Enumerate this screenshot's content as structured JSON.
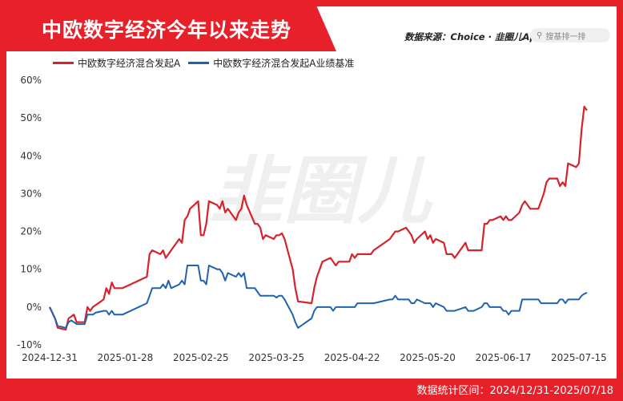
{
  "header": {
    "title": "中欧数字经济今年以来走势",
    "source": "数据来源：Choice · 韭圈儿App",
    "search_placeholder": "搜基排一排"
  },
  "watermark": "韭圈儿",
  "footer": {
    "stat_period": "数据统计区间：2024/12/31-2025/07/18"
  },
  "chart_data": {
    "type": "line",
    "yticks": [
      "60%",
      "50%",
      "40%",
      "30%",
      "20%",
      "10%",
      "0%",
      "-10%"
    ],
    "ylim": [
      -10,
      60
    ],
    "xticks": [
      "2024-12-31",
      "2025-01-28",
      "2025-02-25",
      "2025-03-25",
      "2025-04-22",
      "2025-05-20",
      "2025-06-17",
      "2025-07-15"
    ],
    "xlim": [
      "2024-12-31",
      "2025-07-18"
    ],
    "grid": false,
    "legend_position": "top-left",
    "series": [
      {
        "name": "中欧数字经济混合发起A",
        "color": "#d7222b",
        "points": [
          [
            "2024-12-31",
            0
          ],
          [
            "2025-01-02",
            -3
          ],
          [
            "2025-01-03",
            -5.5
          ],
          [
            "2025-01-06",
            -6
          ],
          [
            "2025-01-07",
            -3
          ],
          [
            "2025-01-08",
            -2.5
          ],
          [
            "2025-01-09",
            -2
          ],
          [
            "2025-01-10",
            -4
          ],
          [
            "2025-01-13",
            -4
          ],
          [
            "2025-01-14",
            0
          ],
          [
            "2025-01-15",
            -1
          ],
          [
            "2025-01-16",
            0
          ],
          [
            "2025-01-17",
            0.5
          ],
          [
            "2025-01-20",
            2
          ],
          [
            "2025-01-21",
            5
          ],
          [
            "2025-01-22",
            3.5
          ],
          [
            "2025-01-23",
            6.5
          ],
          [
            "2025-01-24",
            5
          ],
          [
            "2025-01-27",
            5
          ],
          [
            "2025-02-05",
            8
          ],
          [
            "2025-02-06",
            14
          ],
          [
            "2025-02-07",
            15
          ],
          [
            "2025-02-10",
            14
          ],
          [
            "2025-02-11",
            15
          ],
          [
            "2025-02-12",
            13
          ],
          [
            "2025-02-13",
            14
          ],
          [
            "2025-02-14",
            15
          ],
          [
            "2025-02-17",
            18
          ],
          [
            "2025-02-18",
            17
          ],
          [
            "2025-02-19",
            23
          ],
          [
            "2025-02-20",
            24
          ],
          [
            "2025-02-21",
            26
          ],
          [
            "2025-02-24",
            28
          ],
          [
            "2025-02-25",
            19
          ],
          [
            "2025-02-26",
            19
          ],
          [
            "2025-02-27",
            22
          ],
          [
            "2025-02-28",
            28
          ],
          [
            "2025-03-03",
            27
          ],
          [
            "2025-03-04",
            26
          ],
          [
            "2025-03-05",
            28
          ],
          [
            "2025-03-06",
            25
          ],
          [
            "2025-03-07",
            26
          ],
          [
            "2025-03-10",
            23
          ],
          [
            "2025-03-11",
            25
          ],
          [
            "2025-03-12",
            26
          ],
          [
            "2025-03-13",
            29.5
          ],
          [
            "2025-03-14",
            27
          ],
          [
            "2025-03-17",
            22
          ],
          [
            "2025-03-18",
            22
          ],
          [
            "2025-03-19",
            21
          ],
          [
            "2025-03-20",
            18
          ],
          [
            "2025-03-21",
            19
          ],
          [
            "2025-03-24",
            18
          ],
          [
            "2025-03-25",
            19
          ],
          [
            "2025-03-26",
            19
          ],
          [
            "2025-03-27",
            19.5
          ],
          [
            "2025-03-28",
            18
          ],
          [
            "2025-03-31",
            10
          ],
          [
            "2025-04-01",
            5
          ],
          [
            "2025-04-02",
            1.5
          ],
          [
            "2025-04-07",
            1
          ],
          [
            "2025-04-08",
            5
          ],
          [
            "2025-04-09",
            8
          ],
          [
            "2025-04-10",
            10
          ],
          [
            "2025-04-11",
            12
          ],
          [
            "2025-04-14",
            13
          ],
          [
            "2025-04-15",
            12
          ],
          [
            "2025-04-16",
            11
          ],
          [
            "2025-04-17",
            12
          ],
          [
            "2025-04-18",
            12
          ],
          [
            "2025-04-21",
            12
          ],
          [
            "2025-04-22",
            14
          ],
          [
            "2025-04-23",
            13
          ],
          [
            "2025-04-24",
            14
          ],
          [
            "2025-04-25",
            14
          ],
          [
            "2025-04-28",
            14
          ],
          [
            "2025-04-29",
            14
          ],
          [
            "2025-04-30",
            15
          ],
          [
            "2025-05-06",
            18
          ],
          [
            "2025-05-07",
            19
          ],
          [
            "2025-05-08",
            20
          ],
          [
            "2025-05-09",
            20
          ],
          [
            "2025-05-12",
            21
          ],
          [
            "2025-05-13",
            20
          ],
          [
            "2025-05-14",
            19
          ],
          [
            "2025-05-15",
            17
          ],
          [
            "2025-05-16",
            18
          ],
          [
            "2025-05-19",
            20
          ],
          [
            "2025-05-20",
            18
          ],
          [
            "2025-05-21",
            19
          ],
          [
            "2025-05-22",
            17
          ],
          [
            "2025-05-23",
            18
          ],
          [
            "2025-05-26",
            17
          ],
          [
            "2025-05-27",
            14
          ],
          [
            "2025-05-28",
            14
          ],
          [
            "2025-05-29",
            14
          ],
          [
            "2025-05-30",
            13
          ],
          [
            "2025-06-03",
            17
          ],
          [
            "2025-06-04",
            15
          ],
          [
            "2025-06-05",
            15
          ],
          [
            "2025-06-06",
            15
          ],
          [
            "2025-06-09",
            15
          ],
          [
            "2025-06-10",
            22
          ],
          [
            "2025-06-11",
            22
          ],
          [
            "2025-06-12",
            23
          ],
          [
            "2025-06-13",
            23
          ],
          [
            "2025-06-16",
            24
          ],
          [
            "2025-06-17",
            23
          ],
          [
            "2025-06-18",
            24
          ],
          [
            "2025-06-19",
            23
          ],
          [
            "2025-06-20",
            23
          ],
          [
            "2025-06-23",
            25
          ],
          [
            "2025-06-24",
            27
          ],
          [
            "2025-06-25",
            28
          ],
          [
            "2025-06-26",
            27
          ],
          [
            "2025-06-27",
            26
          ],
          [
            "2025-06-30",
            26
          ],
          [
            "2025-07-01",
            28
          ],
          [
            "2025-07-02",
            30
          ],
          [
            "2025-07-03",
            33
          ],
          [
            "2025-07-04",
            34
          ],
          [
            "2025-07-07",
            34
          ],
          [
            "2025-07-08",
            32
          ],
          [
            "2025-07-09",
            33
          ],
          [
            "2025-07-10",
            32
          ],
          [
            "2025-07-11",
            38
          ],
          [
            "2025-07-14",
            37
          ],
          [
            "2025-07-15",
            38
          ],
          [
            "2025-07-16",
            47
          ],
          [
            "2025-07-17",
            53
          ],
          [
            "2025-07-18",
            52
          ]
        ]
      },
      {
        "name": "中欧数字经济混合发起A业绩基准",
        "color": "#1d63b0",
        "points": [
          [
            "2024-12-31",
            0
          ],
          [
            "2025-01-02",
            -3
          ],
          [
            "2025-01-03",
            -5
          ],
          [
            "2025-01-06",
            -5.5
          ],
          [
            "2025-01-07",
            -4
          ],
          [
            "2025-01-08",
            -3.5
          ],
          [
            "2025-01-09",
            -4
          ],
          [
            "2025-01-10",
            -4.5
          ],
          [
            "2025-01-13",
            -4.5
          ],
          [
            "2025-01-14",
            -2
          ],
          [
            "2025-01-15",
            -2
          ],
          [
            "2025-01-16",
            -2
          ],
          [
            "2025-01-17",
            -1.5
          ],
          [
            "2025-01-20",
            -1
          ],
          [
            "2025-01-21",
            -1
          ],
          [
            "2025-01-22",
            -2
          ],
          [
            "2025-01-23",
            -1
          ],
          [
            "2025-01-24",
            -2
          ],
          [
            "2025-01-27",
            -2
          ],
          [
            "2025-02-05",
            1
          ],
          [
            "2025-02-06",
            3
          ],
          [
            "2025-02-07",
            5
          ],
          [
            "2025-02-10",
            5
          ],
          [
            "2025-02-11",
            6
          ],
          [
            "2025-02-12",
            5
          ],
          [
            "2025-02-13",
            7
          ],
          [
            "2025-02-14",
            5
          ],
          [
            "2025-02-17",
            6
          ],
          [
            "2025-02-18",
            7
          ],
          [
            "2025-02-19",
            6
          ],
          [
            "2025-02-20",
            11
          ],
          [
            "2025-02-21",
            11
          ],
          [
            "2025-02-24",
            11
          ],
          [
            "2025-02-25",
            7
          ],
          [
            "2025-02-26",
            7
          ],
          [
            "2025-02-27",
            6
          ],
          [
            "2025-02-28",
            11
          ],
          [
            "2025-03-03",
            10
          ],
          [
            "2025-03-04",
            10
          ],
          [
            "2025-03-05",
            9
          ],
          [
            "2025-03-06",
            7
          ],
          [
            "2025-03-07",
            9
          ],
          [
            "2025-03-10",
            8
          ],
          [
            "2025-03-11",
            9
          ],
          [
            "2025-03-12",
            8
          ],
          [
            "2025-03-13",
            9
          ],
          [
            "2025-03-14",
            5
          ],
          [
            "2025-03-17",
            5
          ],
          [
            "2025-03-18",
            4
          ],
          [
            "2025-03-19",
            3
          ],
          [
            "2025-03-20",
            3
          ],
          [
            "2025-03-21",
            3
          ],
          [
            "2025-03-24",
            3
          ],
          [
            "2025-03-25",
            2.5
          ],
          [
            "2025-03-26",
            3
          ],
          [
            "2025-03-27",
            3
          ],
          [
            "2025-03-28",
            2
          ],
          [
            "2025-03-31",
            -2
          ],
          [
            "2025-04-01",
            -4
          ],
          [
            "2025-04-02",
            -5.5
          ],
          [
            "2025-04-07",
            -3
          ],
          [
            "2025-04-08",
            -1
          ],
          [
            "2025-04-09",
            0
          ],
          [
            "2025-04-10",
            0
          ],
          [
            "2025-04-11",
            0
          ],
          [
            "2025-04-14",
            0
          ],
          [
            "2025-04-15",
            -1
          ],
          [
            "2025-04-16",
            0
          ],
          [
            "2025-04-17",
            0
          ],
          [
            "2025-04-18",
            0
          ],
          [
            "2025-04-21",
            0
          ],
          [
            "2025-04-22",
            0
          ],
          [
            "2025-04-23",
            0
          ],
          [
            "2025-04-24",
            1
          ],
          [
            "2025-04-25",
            1
          ],
          [
            "2025-04-28",
            1
          ],
          [
            "2025-04-29",
            1
          ],
          [
            "2025-04-30",
            1
          ],
          [
            "2025-05-06",
            2
          ],
          [
            "2025-05-07",
            2
          ],
          [
            "2025-05-08",
            3
          ],
          [
            "2025-05-09",
            2
          ],
          [
            "2025-05-12",
            2
          ],
          [
            "2025-05-13",
            2
          ],
          [
            "2025-05-14",
            1
          ],
          [
            "2025-05-15",
            1
          ],
          [
            "2025-05-16",
            2
          ],
          [
            "2025-05-19",
            1
          ],
          [
            "2025-05-20",
            1
          ],
          [
            "2025-05-21",
            1
          ],
          [
            "2025-05-22",
            0
          ],
          [
            "2025-05-23",
            1
          ],
          [
            "2025-05-26",
            0
          ],
          [
            "2025-05-27",
            -1
          ],
          [
            "2025-05-28",
            -1
          ],
          [
            "2025-05-29",
            -1
          ],
          [
            "2025-05-30",
            -1
          ],
          [
            "2025-06-03",
            0
          ],
          [
            "2025-06-04",
            -1
          ],
          [
            "2025-06-05",
            -1
          ],
          [
            "2025-06-06",
            -1
          ],
          [
            "2025-06-09",
            0
          ],
          [
            "2025-06-10",
            1
          ],
          [
            "2025-06-11",
            1
          ],
          [
            "2025-06-12",
            0
          ],
          [
            "2025-06-13",
            0
          ],
          [
            "2025-06-16",
            0
          ],
          [
            "2025-06-17",
            -1
          ],
          [
            "2025-06-18",
            -1
          ],
          [
            "2025-06-19",
            -2
          ],
          [
            "2025-06-20",
            -1
          ],
          [
            "2025-06-23",
            -1
          ],
          [
            "2025-06-24",
            2
          ],
          [
            "2025-06-25",
            2
          ],
          [
            "2025-06-26",
            2
          ],
          [
            "2025-06-27",
            2
          ],
          [
            "2025-06-30",
            2
          ],
          [
            "2025-07-01",
            1
          ],
          [
            "2025-07-02",
            1
          ],
          [
            "2025-07-03",
            1
          ],
          [
            "2025-07-04",
            1
          ],
          [
            "2025-07-07",
            1
          ],
          [
            "2025-07-08",
            2
          ],
          [
            "2025-07-09",
            2
          ],
          [
            "2025-07-10",
            1
          ],
          [
            "2025-07-11",
            2
          ],
          [
            "2025-07-14",
            2
          ],
          [
            "2025-07-15",
            2
          ],
          [
            "2025-07-16",
            3
          ],
          [
            "2025-07-17",
            3.5
          ],
          [
            "2025-07-18",
            3.8
          ]
        ]
      }
    ]
  }
}
